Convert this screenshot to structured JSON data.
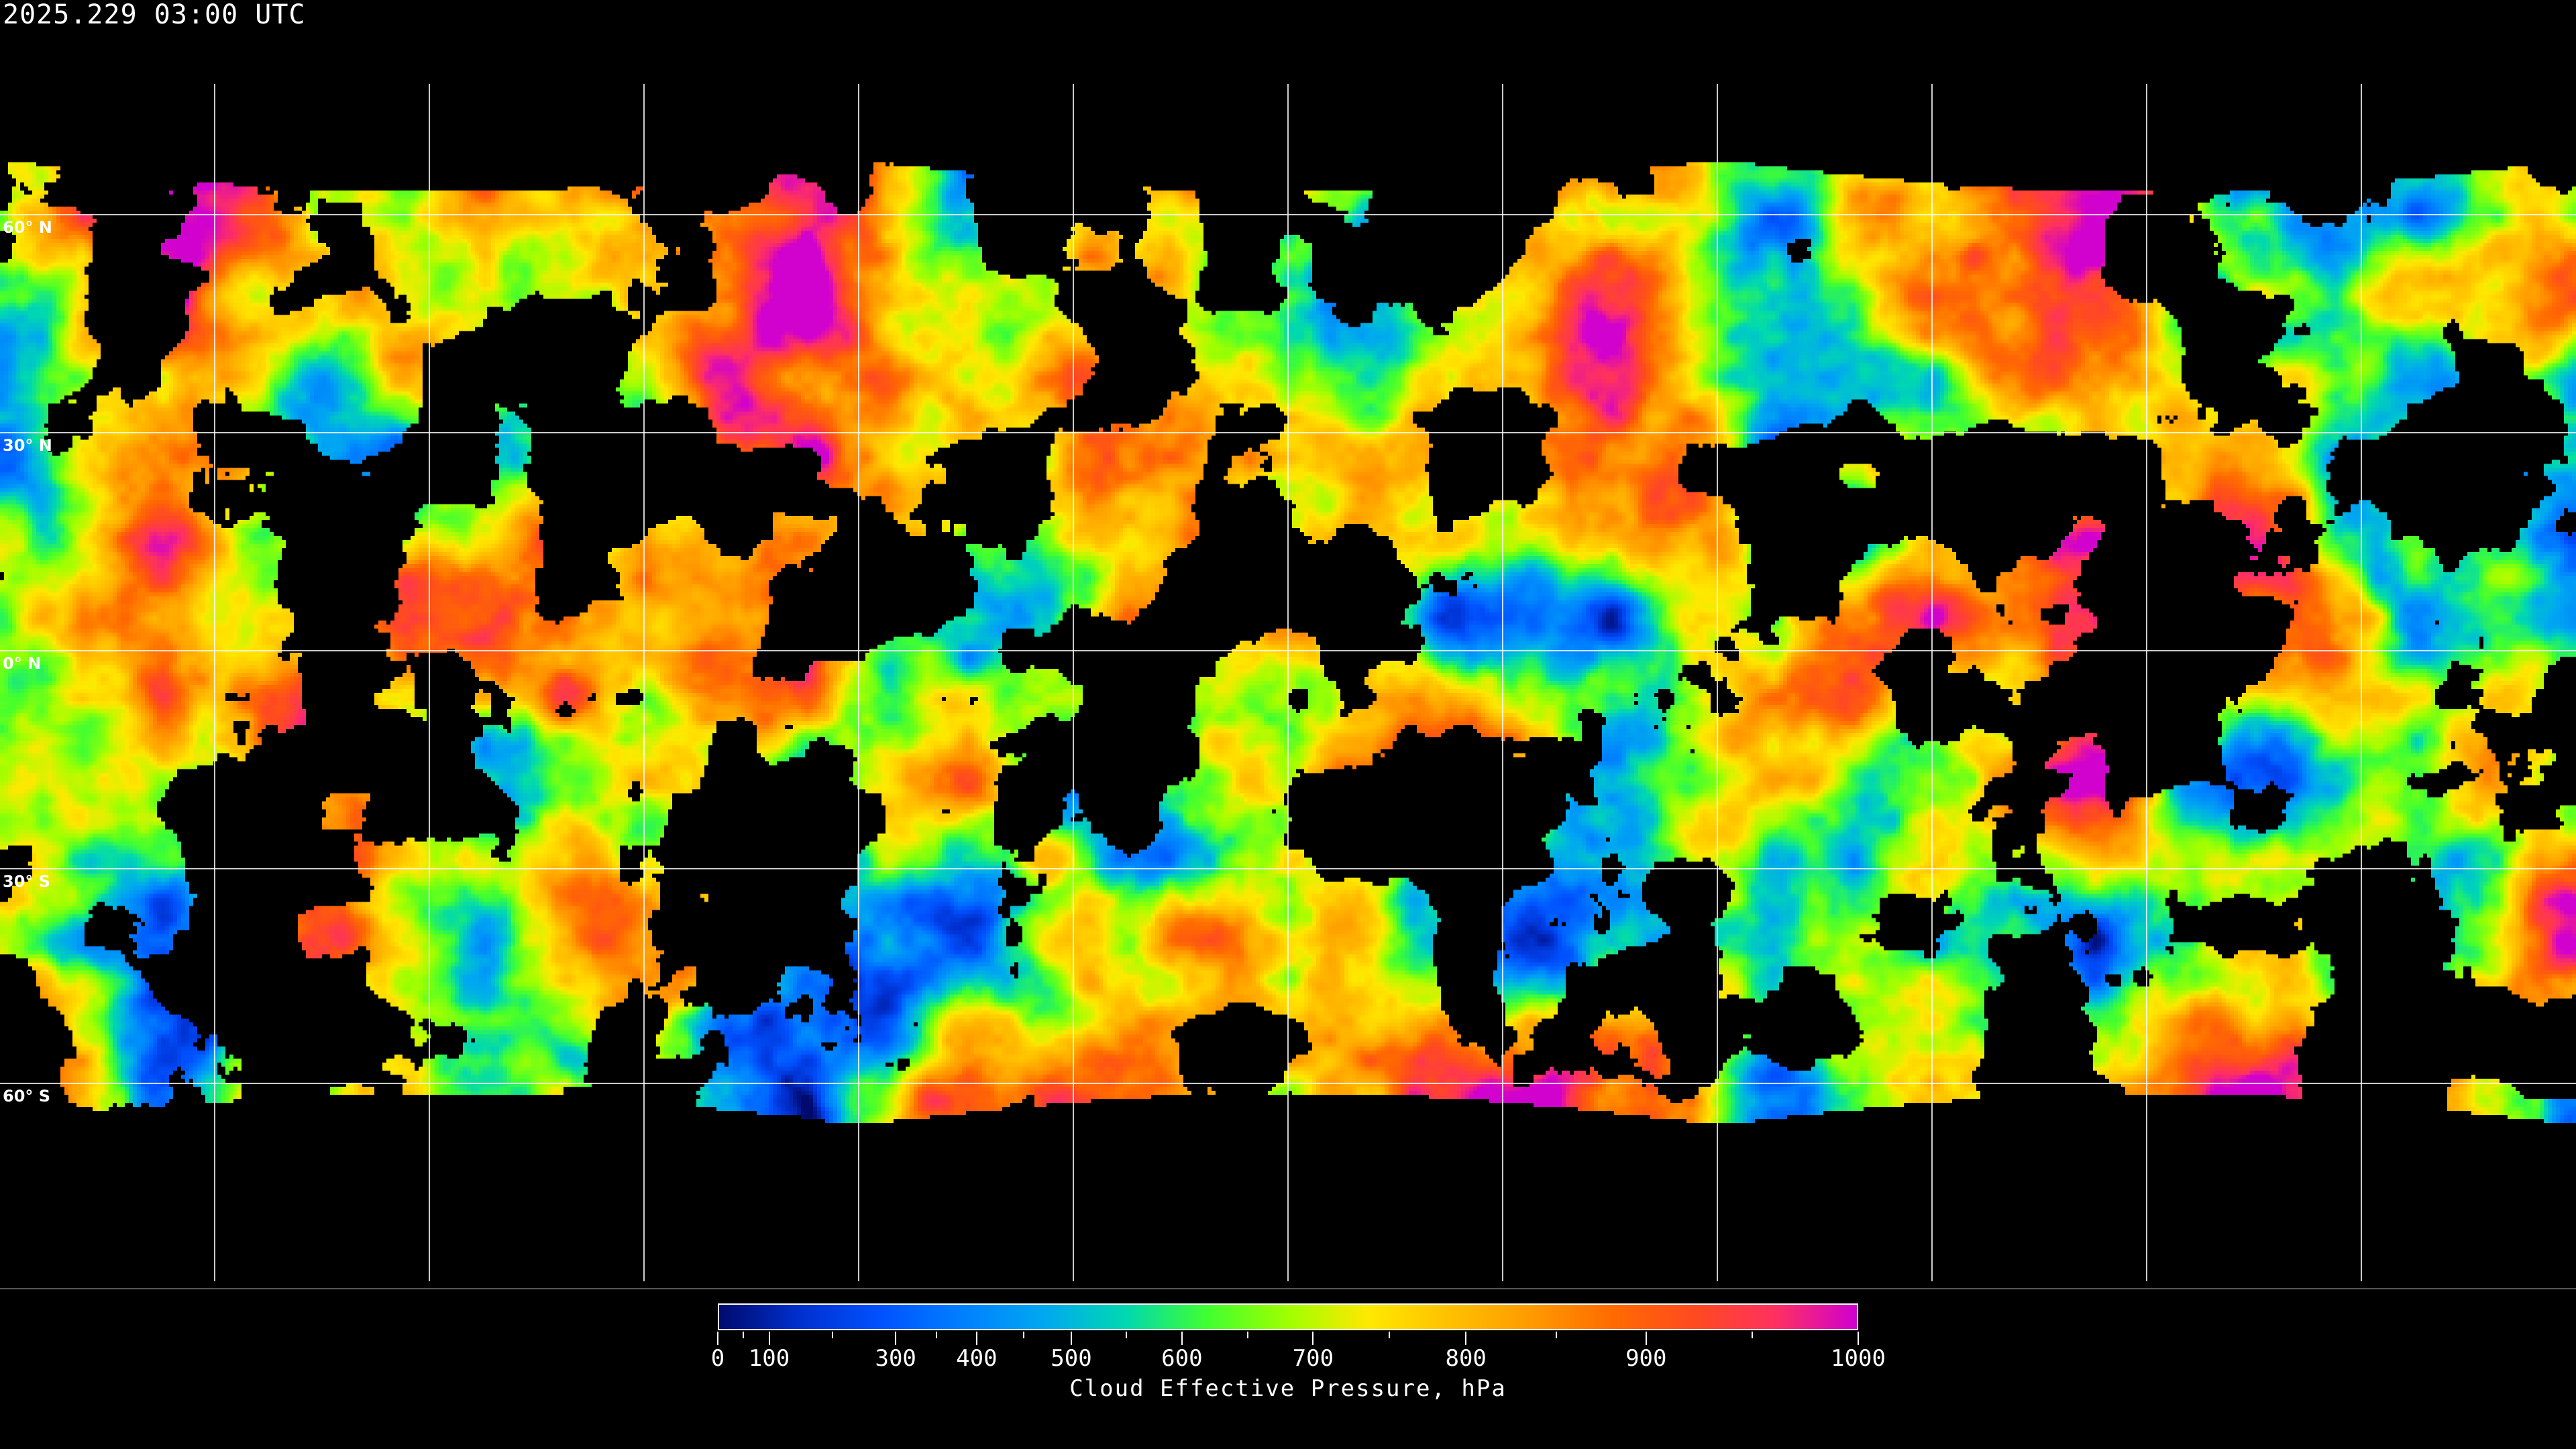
{
  "title": "2025.229 03:00 UTC",
  "latitude_labels": [
    "60° N",
    "30° N",
    "0° N",
    "30° S",
    "60° S"
  ],
  "colorbar": {
    "title": "Cloud Effective Pressure, hPa",
    "range": [
      0,
      1000
    ],
    "labels": [
      {
        "text": "0",
        "value": 0,
        "frac": 0.0
      },
      {
        "text": "100",
        "value": 100,
        "frac": 0.045
      },
      {
        "text": "300",
        "value": 300,
        "frac": 0.156
      },
      {
        "text": "400",
        "value": 400,
        "frac": 0.227
      },
      {
        "text": "500",
        "value": 500,
        "frac": 0.31
      },
      {
        "text": "600",
        "value": 600,
        "frac": 0.407
      },
      {
        "text": "700",
        "value": 700,
        "frac": 0.522
      },
      {
        "text": "800",
        "value": 800,
        "frac": 0.656
      },
      {
        "text": "900",
        "value": 900,
        "frac": 0.814
      },
      {
        "text": "1000",
        "value": 1000,
        "frac": 1.0
      }
    ],
    "colors": [
      "#000a6e",
      "#0030d0",
      "#0052ff",
      "#0080ff",
      "#00a8f0",
      "#00d8b0",
      "#40ff30",
      "#a0ff00",
      "#ffe800",
      "#ffc000",
      "#ff9a00",
      "#ff6a00",
      "#ff4a20",
      "#ff3060",
      "#d000d0"
    ],
    "no_cloud_color": "#000000"
  },
  "grid": {
    "lat_step_deg": 30,
    "lon_step_deg": 30,
    "line_color": "#ffffff"
  }
}
